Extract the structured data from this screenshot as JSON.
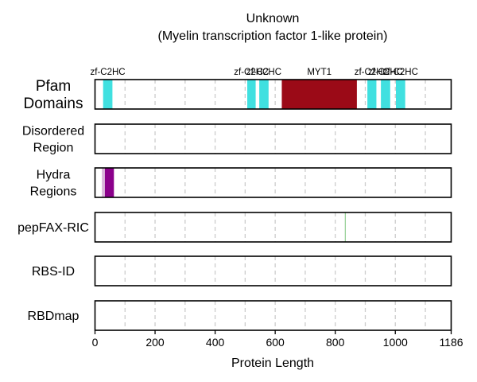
{
  "chart_data": {
    "type": "bar",
    "title": "Unknown",
    "subtitle": "(Myelin transcription factor 1-like protein)",
    "xlabel": "Protein Length",
    "xlim": [
      0,
      1186
    ],
    "x_ticks": [
      0,
      200,
      400,
      600,
      800,
      1000,
      1186
    ],
    "grid": {
      "vertical_dashed": true,
      "step": 100
    },
    "tracks": [
      {
        "name": "Pfam\nDomains",
        "features": [
          {
            "label": "zf-C2HC",
            "start": 27,
            "end": 58,
            "color": "#40e0e0"
          },
          {
            "label": "zf-C2HC",
            "start": 507,
            "end": 535,
            "color": "#40e0e0"
          },
          {
            "label": "zf-C2HC",
            "start": 547,
            "end": 578,
            "color": "#40e0e0"
          },
          {
            "label": "MYT1",
            "start": 622,
            "end": 872,
            "color": "#9b0a17"
          },
          {
            "label": "zf-C2HC",
            "start": 907,
            "end": 937,
            "color": "#40e0e0"
          },
          {
            "label": "zf-C2HC",
            "start": 952,
            "end": 983,
            "color": "#40e0e0"
          },
          {
            "label": "zf-C2HC",
            "start": 1002,
            "end": 1033,
            "color": "#40e0e0"
          }
        ]
      },
      {
        "name": "Disordered\nRegion",
        "features": []
      },
      {
        "name": "Hydra\nRegions",
        "features": [
          {
            "label": "",
            "start": 23,
            "end": 33,
            "color": "#d9b3d9"
          },
          {
            "label": "",
            "start": 33,
            "end": 63,
            "color": "#8b008b"
          }
        ]
      },
      {
        "name": "pepFAX-RIC",
        "features": [
          {
            "label": "",
            "start": 832,
            "end": 834,
            "color": "#7cc47c"
          }
        ]
      },
      {
        "name": "RBS-ID",
        "features": []
      },
      {
        "name": "RBDmap",
        "features": []
      }
    ]
  }
}
